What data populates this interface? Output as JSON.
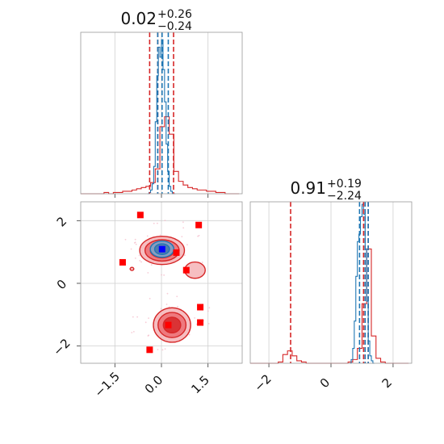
{
  "colors": {
    "red": "#d62728",
    "blue": "#1f77b4",
    "marker_red": "#ff0000",
    "marker_blue": "#0000ff",
    "light_red": "#f4b3b6",
    "mid_red": "#ec6d72",
    "fill_blue_dark": "#4b79a8",
    "fill_blue_light": "#7fa8cf"
  },
  "chart_data": [
    {
      "type": "histogram",
      "panel": "top-left",
      "title_main": "0.02",
      "title_sup": "+0.26",
      "title_sub": "−0.24",
      "xlim": [
        -2.6,
        2.6
      ],
      "x_ticks": [
        -1.5,
        0.0,
        1.5
      ],
      "x_tick_labels": [],
      "grid": true,
      "series": [
        {
          "color": "#d62728",
          "bin_edges": [
            -2.6,
            -2.45,
            -2.3,
            -2.15,
            -2.0,
            -1.85,
            -1.7,
            -1.55,
            -1.4,
            -1.25,
            -1.1,
            -0.95,
            -0.8,
            -0.65,
            -0.5,
            -0.35,
            -0.2,
            -0.05,
            0.1,
            0.25,
            0.4,
            0.55,
            0.7,
            0.85,
            1.0,
            1.15,
            1.3,
            1.45,
            1.6,
            1.75,
            1.9,
            2.05,
            2.2,
            2.35,
            2.5
          ],
          "counts": [
            0,
            0,
            0,
            0,
            0,
            1,
            0,
            1,
            1,
            2,
            2,
            3,
            4,
            5,
            6,
            9,
            20,
            54,
            62,
            48,
            18,
            10,
            7,
            5,
            4,
            3,
            3,
            2,
            2,
            1,
            1,
            0,
            0,
            0
          ],
          "ymax": 130
        },
        {
          "color": "#1f77b4",
          "bin_edges": [
            -0.45,
            -0.4,
            -0.35,
            -0.3,
            -0.25,
            -0.2,
            -0.15,
            -0.1,
            -0.05,
            0.0,
            0.05,
            0.1,
            0.15,
            0.2,
            0.25,
            0.3,
            0.35,
            0.4,
            0.45
          ],
          "counts": [
            0,
            1,
            3,
            8,
            22,
            58,
            95,
            118,
            110,
            124,
            100,
            74,
            40,
            18,
            6,
            2,
            0,
            0
          ],
          "ymax": 130
        }
      ],
      "vlines": [
        {
          "x": -0.38,
          "color": "#d62728"
        },
        {
          "x": -0.12,
          "color": "#d62728"
        },
        {
          "x": 0.39,
          "color": "#d62728"
        },
        {
          "x": -0.12,
          "color": "#1f77b4"
        },
        {
          "x": 0.02,
          "color": "#1f77b4"
        },
        {
          "x": 0.22,
          "color": "#1f77b4"
        }
      ]
    },
    {
      "type": "scatter-contour",
      "panel": "bottom-left",
      "xlim": [
        -2.6,
        2.6
      ],
      "ylim": [
        -2.55,
        2.6
      ],
      "x_ticks": [
        -1.5,
        0.0,
        1.5
      ],
      "x_tick_labels": [
        "−1.5",
        "0.0",
        "1.5"
      ],
      "y_ticks": [
        2,
        0,
        -2
      ],
      "y_tick_labels": [
        "2",
        "0",
        "−2"
      ],
      "grid": true,
      "red_markers": [
        {
          "x": -0.68,
          "y": 2.18
        },
        {
          "x": 1.2,
          "y": 1.86
        },
        {
          "x": -1.25,
          "y": 0.67
        },
        {
          "x": 0.8,
          "y": 0.42
        },
        {
          "x": 1.25,
          "y": -0.76
        },
        {
          "x": 1.25,
          "y": -1.25
        },
        {
          "x": -0.38,
          "y": -2.12
        },
        {
          "x": 0.48,
          "y": 0.98
        },
        {
          "x": 0.22,
          "y": -1.33
        }
      ],
      "blue_markers": [
        {
          "x": 0.02,
          "y": 1.09
        }
      ],
      "red_contour_blobs": [
        {
          "cx": 0.02,
          "cy": 1.05,
          "levels": [
            [
              0.72,
              0.45
            ],
            [
              0.55,
              0.34
            ],
            [
              0.38,
              0.24
            ]
          ]
        },
        {
          "cx": 0.34,
          "cy": -1.33,
          "levels": [
            [
              0.6,
              0.55
            ],
            [
              0.45,
              0.4
            ],
            [
              0.28,
              0.25
            ]
          ]
        },
        {
          "cx": 1.08,
          "cy": 0.42,
          "levels": [
            [
              0.33,
              0.26
            ]
          ]
        },
        {
          "cx": -0.95,
          "cy": 0.46,
          "levels": [
            [
              0.06,
              0.05
            ]
          ]
        }
      ],
      "blue_contour_blob": {
        "cx": 0.02,
        "cy": 1.09,
        "levels": [
          [
            0.38,
            0.26
          ],
          [
            0.24,
            0.17
          ]
        ]
      }
    },
    {
      "type": "histogram",
      "panel": "bottom-right",
      "title_main": "0.91",
      "title_sup": "+0.19",
      "title_sub": "−2.24",
      "xlim": [
        -2.6,
        2.6
      ],
      "x_ticks": [
        -2,
        0,
        2
      ],
      "x_tick_labels": [
        "−2",
        "0",
        "2"
      ],
      "grid": true,
      "series": [
        {
          "color": "#d62728",
          "bin_edges": [
            -2.6,
            -2.45,
            -2.3,
            -2.15,
            -2.0,
            -1.85,
            -1.7,
            -1.55,
            -1.4,
            -1.25,
            -1.1,
            -0.95,
            -0.8,
            -0.65,
            -0.5,
            -0.35,
            -0.2,
            -0.05,
            0.1,
            0.25,
            0.4,
            0.55,
            0.7,
            0.85,
            1.0,
            1.15,
            1.3,
            1.45,
            1.6,
            1.75,
            1.9,
            2.05,
            2.2,
            2.35,
            2.5
          ],
          "counts": [
            0,
            0,
            0,
            0,
            0,
            0,
            1,
            7,
            10,
            6,
            2,
            1,
            0,
            0,
            0,
            0,
            0,
            0,
            0,
            0,
            0,
            1,
            3,
            12,
            48,
            92,
            22,
            4,
            1,
            0,
            0,
            0,
            0,
            0
          ],
          "ymax": 130
        },
        {
          "color": "#1f77b4",
          "bin_edges": [
            0.6,
            0.65,
            0.7,
            0.75,
            0.8,
            0.85,
            0.9,
            0.95,
            1.0,
            1.05,
            1.1,
            1.15,
            1.2,
            1.25,
            1.3,
            1.35,
            1.4
          ],
          "counts": [
            0,
            3,
            12,
            34,
            70,
            98,
            104,
            118,
            128,
            120,
            92,
            50,
            18,
            6,
            2,
            0
          ],
          "ymax": 130
        }
      ],
      "vlines": [
        {
          "x": -1.3,
          "color": "#d62728"
        },
        {
          "x": 1.05,
          "color": "#d62728"
        },
        {
          "x": 1.2,
          "color": "#d62728"
        },
        {
          "x": 0.92,
          "color": "#1f77b4"
        },
        {
          "x": 1.1,
          "color": "#1f77b4"
        },
        {
          "x": 1.2,
          "color": "#1f77b4"
        }
      ]
    }
  ]
}
